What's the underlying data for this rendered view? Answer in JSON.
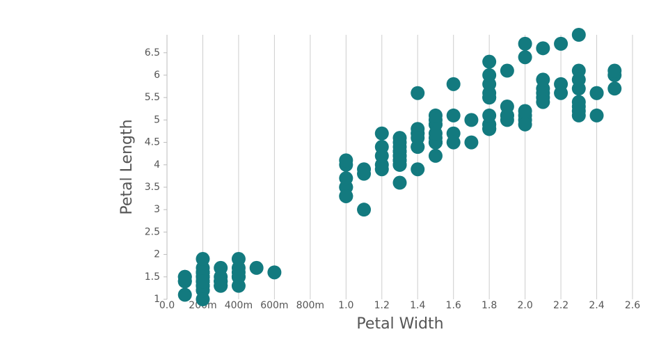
{
  "chart_data": {
    "type": "scatter",
    "x_label": "Petal Width",
    "y_label": "Petal Length",
    "color": "#137a7f",
    "grid": true,
    "xlim": [
      0,
      2.6
    ],
    "ylim": [
      1,
      6.9
    ],
    "xticks": [
      {
        "value": 0,
        "label": "0.0"
      },
      {
        "value": 0.2,
        "label": "200m"
      },
      {
        "value": 0.4,
        "label": "400m"
      },
      {
        "value": 0.6,
        "label": "600m"
      },
      {
        "value": 0.8,
        "label": "800m"
      },
      {
        "value": 1,
        "label": "1.0"
      },
      1.2,
      1.4,
      1.6,
      1.8,
      {
        "value": 2,
        "label": "2.0"
      },
      2.2,
      2.4,
      2.6
    ],
    "yticks": [
      1,
      1.5,
      2,
      2.5,
      3,
      3.5,
      4,
      4.5,
      5,
      5.5,
      6,
      6.5
    ],
    "x": [
      0.2,
      0.2,
      0.2,
      0.2,
      0.2,
      0.4,
      0.3,
      0.2,
      0.2,
      0.1,
      0.2,
      0.2,
      0.1,
      0.1,
      0.2,
      0.4,
      0.4,
      0.3,
      0.3,
      0.3,
      0.2,
      0.4,
      0.2,
      0.5,
      0.2,
      0.2,
      0.4,
      0.2,
      0.2,
      0.2,
      0.2,
      0.4,
      0.1,
      0.2,
      0.2,
      0.2,
      0.2,
      0.1,
      0.2,
      0.2,
      0.3,
      0.3,
      0.2,
      0.6,
      0.4,
      0.3,
      0.2,
      0.2,
      0.2,
      0.2,
      1.4,
      1.5,
      1.5,
      1.3,
      1.5,
      1.3,
      1.6,
      1.0,
      1.3,
      1.4,
      1.0,
      1.5,
      1.0,
      1.4,
      1.3,
      1.4,
      1.5,
      1.0,
      1.5,
      1.1,
      1.8,
      1.3,
      1.5,
      1.2,
      1.3,
      1.4,
      1.4,
      1.7,
      1.5,
      1.0,
      1.1,
      1.0,
      1.2,
      1.6,
      1.5,
      1.6,
      1.5,
      1.3,
      1.3,
      1.3,
      1.2,
      1.4,
      1.2,
      1.0,
      1.3,
      1.2,
      1.3,
      1.3,
      1.1,
      1.3,
      2.5,
      1.9,
      2.1,
      1.8,
      2.2,
      2.1,
      1.7,
      1.8,
      1.8,
      2.5,
      2.0,
      1.9,
      2.1,
      2.0,
      2.4,
      2.3,
      1.8,
      2.2,
      2.3,
      1.5,
      2.3,
      2.0,
      2.0,
      1.8,
      2.1,
      1.8,
      1.8,
      1.8,
      2.1,
      1.6,
      1.9,
      2.0,
      2.2,
      1.5,
      1.4,
      2.3,
      2.4,
      1.8,
      1.8,
      2.1,
      2.4,
      2.3,
      1.9,
      2.3,
      2.5,
      2.3,
      1.9,
      2.0,
      2.3,
      1.8
    ],
    "values": [
      1.4,
      1.4,
      1.3,
      1.5,
      1.4,
      1.7,
      1.4,
      1.5,
      1.4,
      1.5,
      1.5,
      1.6,
      1.4,
      1.1,
      1.2,
      1.5,
      1.3,
      1.4,
      1.7,
      1.5,
      1.7,
      1.5,
      1.0,
      1.7,
      1.9,
      1.6,
      1.6,
      1.5,
      1.4,
      1.6,
      1.6,
      1.5,
      1.5,
      1.4,
      1.5,
      1.2,
      1.3,
      1.4,
      1.3,
      1.5,
      1.3,
      1.3,
      1.3,
      1.6,
      1.9,
      1.4,
      1.6,
      1.4,
      1.5,
      1.4,
      4.7,
      4.5,
      4.9,
      4.0,
      4.6,
      4.5,
      4.7,
      3.3,
      4.6,
      3.9,
      3.5,
      4.2,
      4.0,
      4.7,
      3.6,
      4.4,
      4.5,
      4.1,
      4.5,
      3.9,
      4.8,
      4.0,
      4.9,
      4.7,
      4.3,
      4.4,
      4.8,
      5.0,
      4.5,
      3.5,
      3.8,
      3.7,
      3.9,
      5.1,
      4.5,
      4.5,
      4.7,
      4.4,
      4.1,
      4.0,
      4.4,
      4.6,
      4.0,
      3.3,
      4.2,
      4.2,
      4.2,
      4.3,
      3.0,
      4.1,
      6.0,
      5.1,
      5.9,
      5.6,
      5.8,
      6.6,
      4.5,
      6.3,
      5.8,
      6.1,
      5.1,
      5.3,
      5.5,
      5.0,
      5.1,
      5.3,
      5.5,
      6.7,
      6.9,
      5.0,
      5.7,
      4.9,
      6.7,
      4.9,
      5.7,
      6.0,
      4.8,
      4.9,
      5.6,
      5.8,
      6.1,
      6.4,
      5.6,
      5.1,
      5.6,
      6.1,
      5.6,
      5.5,
      4.8,
      5.4,
      5.6,
      5.1,
      5.1,
      5.9,
      5.7,
      5.2,
      5.0,
      5.2,
      5.4,
      5.1
    ]
  }
}
